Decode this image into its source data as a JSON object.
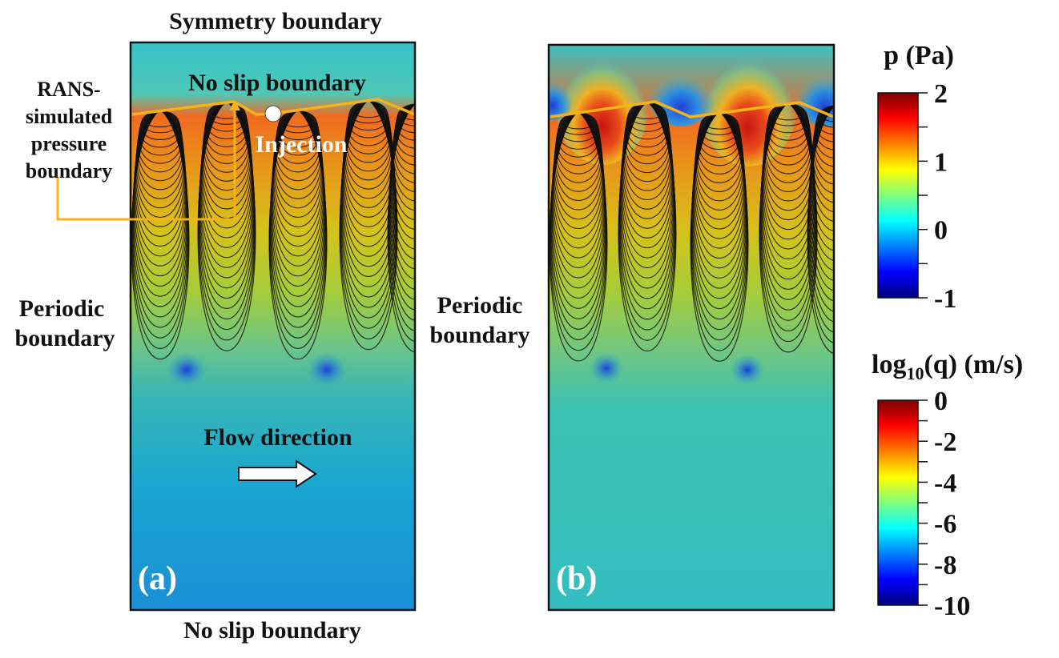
{
  "labels": {
    "symmetry_top": "Symmetry boundary",
    "no_slip_inner": "No slip boundary",
    "rans_line1": "RANS-",
    "rans_line2": "simulated",
    "rans_line3": "pressure",
    "rans_line4": "boundary",
    "injection": "Injection",
    "periodic_left_1": "Periodic",
    "periodic_left_2": "boundary",
    "periodic_right_1": "Periodic",
    "periodic_right_2": "boundary",
    "flow_direction": "Flow direction",
    "panel_a": "(a)",
    "panel_b": "(b)",
    "no_slip_bottom": "No slip boundary"
  },
  "colorbars": {
    "pressure": {
      "title": "p (Pa)",
      "ticks": [
        "2",
        "1",
        "0",
        "-1"
      ],
      "range": [
        -1,
        2
      ]
    },
    "flux": {
      "title_prefix": "log",
      "title_sub": "10",
      "title_suffix": "(q) (m/s)",
      "ticks": [
        "0",
        "-2",
        "-4",
        "-6",
        "-8",
        "-10"
      ],
      "range": [
        -10,
        0
      ]
    }
  },
  "colors": {
    "boundary_line": "#f5b21a",
    "streamline": "#111111",
    "jet": [
      "#00007f",
      "#0000ff",
      "#007fff",
      "#00ffff",
      "#7fff7f",
      "#ffff00",
      "#ff7f00",
      "#ff0000",
      "#7f0000"
    ]
  }
}
